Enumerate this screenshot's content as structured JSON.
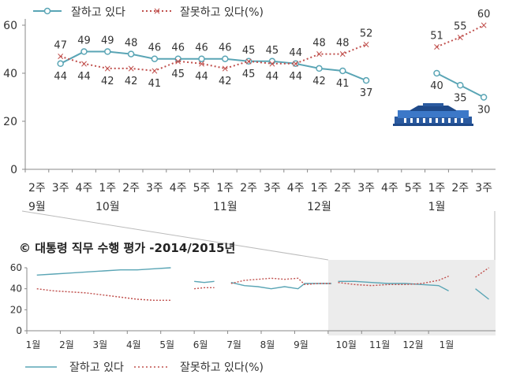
{
  "chart_data": [
    {
      "type": "line",
      "legend": {
        "position": "top-left",
        "entries": [
          "잘하고 있다",
          "잘못하고 있다(%)"
        ]
      },
      "ylim": [
        0,
        60
      ],
      "yticks": [
        "0",
        "20",
        "40",
        "60"
      ],
      "week_labels": [
        "2주",
        "3주",
        "4주",
        "1주",
        "2주",
        "3주",
        "4주",
        "5주",
        "1주",
        "2주",
        "3주",
        "4주",
        "1주",
        "2주",
        "3주",
        "4주",
        "5주",
        "1주",
        "2주",
        "3주"
      ],
      "month_labels": [
        "9월",
        "10월",
        "11월",
        "12월",
        "1월"
      ],
      "series": [
        {
          "name": "잘하고 있다",
          "color": "#5aa5b5",
          "segments": [
            {
              "x": [
                1,
                2,
                3,
                4,
                5,
                6,
                7,
                8,
                9,
                10,
                11,
                12,
                13,
                14
              ],
              "values": [
                44,
                49,
                49,
                48,
                46,
                46,
                46,
                46,
                45,
                45,
                44,
                42,
                41,
                37
              ],
              "labels": [
                "44",
                "49",
                "49",
                "48",
                "46",
                "46",
                "46",
                "46",
                "45",
                "45",
                "44",
                "42",
                "41",
                "37"
              ]
            },
            {
              "x": [
                17,
                18,
                19
              ],
              "values": [
                40,
                35,
                30
              ],
              "labels": [
                "40",
                "35",
                "30"
              ]
            }
          ]
        },
        {
          "name": "잘못하고 있다",
          "color": "#c0504d",
          "segments": [
            {
              "x": [
                1,
                2,
                3,
                4,
                5,
                6,
                7,
                8,
                9,
                10,
                11,
                12,
                13,
                14
              ],
              "values": [
                47,
                44,
                42,
                42,
                41,
                45,
                44,
                42,
                45,
                44,
                44,
                48,
                48,
                52
              ],
              "labels": [
                "47",
                "44",
                "42",
                "42",
                "41",
                "45",
                "44",
                "42",
                "45",
                "44",
                "44",
                "48",
                "48",
                "52"
              ]
            },
            {
              "x": [
                17,
                18,
                19
              ],
              "values": [
                51,
                55,
                60
              ],
              "labels": [
                "51",
                "55",
                "60"
              ]
            }
          ]
        }
      ]
    },
    {
      "type": "line",
      "title": "© 대통령 직무 수행 평가 -2014/2015년",
      "legend": {
        "position": "bottom",
        "entries": [
          "잘하고 있다",
          "잘못하고 있다(%)"
        ]
      },
      "ylim": [
        0,
        60
      ],
      "yticks": [
        "0",
        "20",
        "40",
        "60"
      ],
      "month_labels": [
        "1월",
        "2월",
        "3월",
        "4월",
        "5월",
        "6월",
        "7월",
        "8월",
        "9월",
        "10월",
        "11월",
        "12월",
        "1월"
      ],
      "series": [
        {
          "name": "잘하고 있다",
          "color": "#5aa5b5",
          "segments": [
            {
              "x": [
                0,
                0.5,
                1,
                1.5,
                2,
                2.5,
                3,
                3.5,
                4
              ],
              "values": [
                53,
                54,
                55,
                56,
                57,
                58,
                58,
                59,
                60
              ]
            },
            {
              "x": [
                4.7,
                5,
                5.3
              ],
              "values": [
                47,
                46,
                47
              ]
            },
            {
              "x": [
                5.8,
                6.2,
                6.6,
                7,
                7.4,
                7.8,
                8,
                8.4,
                8.8
              ],
              "values": [
                46,
                43,
                42,
                40,
                42,
                40,
                45,
                45,
                45
              ]
            },
            {
              "x": [
                9,
                9.5,
                10,
                10.5,
                11,
                11.5,
                12,
                12.3
              ],
              "values": [
                47,
                47,
                46,
                45,
                45,
                44,
                43,
                38
              ]
            },
            {
              "x": [
                13.1,
                13.5
              ],
              "values": [
                40,
                30
              ]
            }
          ]
        },
        {
          "name": "잘못하고 있다",
          "color": "#c0504d",
          "segments": [
            {
              "x": [
                0,
                0.5,
                1,
                1.5,
                2,
                2.5,
                3,
                3.5,
                4
              ],
              "values": [
                40,
                38,
                37,
                36,
                34,
                32,
                30,
                29,
                29
              ]
            },
            {
              "x": [
                4.7,
                5,
                5.3
              ],
              "values": [
                40,
                41,
                41
              ]
            },
            {
              "x": [
                5.8,
                6.2,
                6.6,
                7,
                7.4,
                7.8,
                8,
                8.4,
                8.8
              ],
              "values": [
                45,
                48,
                49,
                50,
                49,
                50,
                44,
                45,
                45
              ]
            },
            {
              "x": [
                9,
                9.5,
                10,
                10.5,
                11,
                11.5,
                12,
                12.3
              ],
              "values": [
                46,
                44,
                43,
                44,
                44,
                45,
                48,
                52
              ]
            },
            {
              "x": [
                13.1,
                13.5
              ],
              "values": [
                51,
                60
              ]
            }
          ]
        }
      ]
    }
  ]
}
